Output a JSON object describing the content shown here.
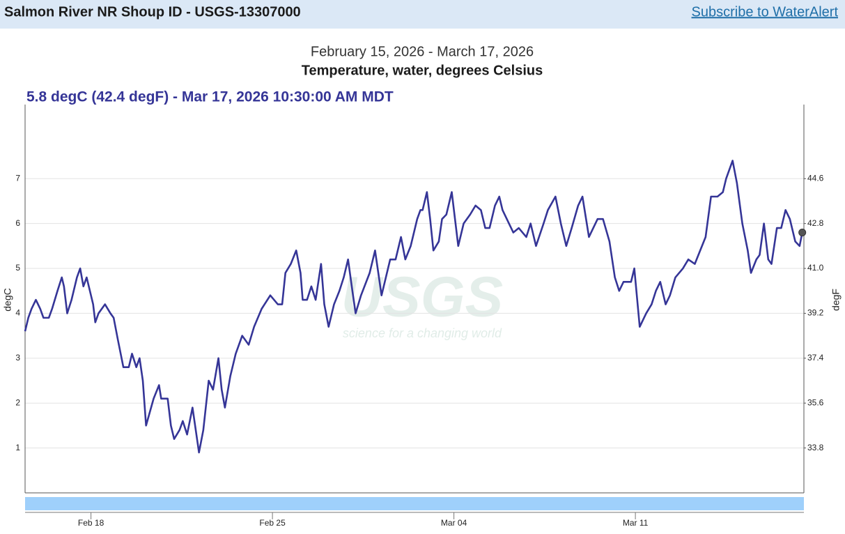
{
  "header": {
    "title": "Salmon River NR Shoup ID - USGS-13307000",
    "link": "Subscribe to WaterAlert"
  },
  "chart_data": {
    "type": "line",
    "subtitle": "February 15, 2026 - March 17, 2026",
    "title": "Temperature, water, degrees Celsius",
    "annotation": "5.8 degC (42.4 degF) - Mar 17, 2026 10:30:00 AM MDT",
    "y_label": "degC",
    "y2_label": "degF",
    "watermark": {
      "logo": "USGS",
      "tagline": "science for a changing world"
    },
    "color": "#353597",
    "grid": true,
    "x": [
      "2026-02-15T11:00",
      "2026-02-15T14:00",
      "2026-02-15T17:00",
      "2026-02-15T21:00",
      "2026-02-16T01:00",
      "2026-02-16T04:00",
      "2026-02-16T09:00",
      "2026-02-16T12:00",
      "2026-02-16T17:00",
      "2026-02-16T21:00",
      "2026-02-16T23:00",
      "2026-02-17T02:00",
      "2026-02-17T06:00",
      "2026-02-17T11:00",
      "2026-02-17T14:00",
      "2026-02-17T17:00",
      "2026-02-17T20:00",
      "2026-02-18T02:00",
      "2026-02-18T04:00",
      "2026-02-18T07:00",
      "2026-02-18T13:00",
      "2026-02-18T18:00",
      "2026-02-18T21:00",
      "2026-02-19T01:00",
      "2026-02-19T06:00",
      "2026-02-19T11:00",
      "2026-02-19T14:00",
      "2026-02-19T18:00",
      "2026-02-19T21:00",
      "2026-02-20T00:00",
      "2026-02-20T03:00",
      "2026-02-20T10:00",
      "2026-02-20T15:00",
      "2026-02-20T17:00",
      "2026-02-20T23:00",
      "2026-02-21T02:00",
      "2026-02-21T05:00",
      "2026-02-21T10:00",
      "2026-02-21T13:00",
      "2026-02-21T17:00",
      "2026-02-21T22:00",
      "2026-02-22T04:00",
      "2026-02-22T08:00",
      "2026-02-22T13:00",
      "2026-02-22T17:00",
      "2026-02-22T22:00",
      "2026-02-23T01:00",
      "2026-02-23T04:00",
      "2026-02-23T09:00",
      "2026-02-23T14:00",
      "2026-02-23T20:00",
      "2026-02-24T02:00",
      "2026-02-24T07:00",
      "2026-02-24T14:00",
      "2026-02-24T22:00",
      "2026-02-25T05:00",
      "2026-02-25T09:00",
      "2026-02-25T12:00",
      "2026-02-25T17:00",
      "2026-02-25T22:00",
      "2026-02-26T02:00",
      "2026-02-26T04:00",
      "2026-02-26T08:00",
      "2026-02-26T12:00",
      "2026-02-26T16:00",
      "2026-02-26T21:00",
      "2026-02-27T00:00",
      "2026-02-27T04:00",
      "2026-02-27T09:00",
      "2026-02-27T14:00",
      "2026-02-27T18:00",
      "2026-02-27T22:00",
      "2026-02-28T02:00",
      "2026-02-28T05:00",
      "2026-02-28T10:00",
      "2026-02-28T18:00",
      "2026-02-28T23:00",
      "2026-03-01T05:00",
      "2026-03-01T09:00",
      "2026-03-01T13:00",
      "2026-03-01T18:00",
      "2026-03-01T23:00",
      "2026-03-02T03:00",
      "2026-03-02T08:00",
      "2026-03-02T14:00",
      "2026-03-02T17:00",
      "2026-03-02T19:00",
      "2026-03-02T23:00",
      "2026-03-03T02:00",
      "2026-03-03T05:00",
      "2026-03-03T10:00",
      "2026-03-03T13:00",
      "2026-03-03T17:00",
      "2026-03-03T22:00",
      "2026-03-04T02:00",
      "2026-03-04T04:00",
      "2026-03-04T09:00",
      "2026-03-04T15:00",
      "2026-03-04T20:00",
      "2026-03-05T01:00",
      "2026-03-05T05:00",
      "2026-03-05T09:00",
      "2026-03-05T14:00",
      "2026-03-05T18:00",
      "2026-03-05T21:00",
      "2026-03-06T03:00",
      "2026-03-06T07:00",
      "2026-03-06T12:00",
      "2026-03-06T19:00",
      "2026-03-06T23:00",
      "2026-03-07T04:00",
      "2026-03-07T11:00",
      "2026-03-07T15:00",
      "2026-03-07T22:00",
      "2026-03-08T03:00",
      "2026-03-08T08:00",
      "2026-03-08T13:00",
      "2026-03-08T19:00",
      "2026-03-08T23:00",
      "2026-03-09T05:00",
      "2026-03-09T09:00",
      "2026-03-09T13:00",
      "2026-03-09T18:00",
      "2026-03-10T00:00",
      "2026-03-10T05:00",
      "2026-03-10T09:00",
      "2026-03-10T13:00",
      "2026-03-10T20:00",
      "2026-03-10T23:00",
      "2026-03-11T04:00",
      "2026-03-11T10:00",
      "2026-03-11T15:00",
      "2026-03-11T19:00",
      "2026-03-11T23:00",
      "2026-03-12T04:00",
      "2026-03-12T08:00",
      "2026-03-12T13:00",
      "2026-03-12T20:00",
      "2026-03-13T01:00",
      "2026-03-13T07:00",
      "2026-03-13T12:00",
      "2026-03-13T17:00",
      "2026-03-13T22:00",
      "2026-03-14T04:00",
      "2026-03-14T09:00",
      "2026-03-14T12:00",
      "2026-03-14T15:00",
      "2026-03-14T18:00",
      "2026-03-14T22:00",
      "2026-03-15T03:00",
      "2026-03-15T08:00",
      "2026-03-15T11:00",
      "2026-03-15T16:00",
      "2026-03-15T19:00",
      "2026-03-15T23:00",
      "2026-03-16T03:00",
      "2026-03-16T06:00",
      "2026-03-16T11:00",
      "2026-03-16T15:00",
      "2026-03-16T19:00",
      "2026-03-16T23:00",
      "2026-03-17T04:00",
      "2026-03-17T08:00",
      "2026-03-17T10:30"
    ],
    "values": [
      3.6,
      3.9,
      4.1,
      4.3,
      4.1,
      3.9,
      3.9,
      4.1,
      4.5,
      4.8,
      4.6,
      4.0,
      4.3,
      4.8,
      5.0,
      4.6,
      4.8,
      4.2,
      3.8,
      4.0,
      4.2,
      4.0,
      3.9,
      3.4,
      2.8,
      2.8,
      3.1,
      2.8,
      3.0,
      2.5,
      1.5,
      2.1,
      2.4,
      2.1,
      2.1,
      1.5,
      1.2,
      1.4,
      1.6,
      1.3,
      1.9,
      0.9,
      1.4,
      2.5,
      2.3,
      3.0,
      2.3,
      1.9,
      2.6,
      3.1,
      3.5,
      3.3,
      3.7,
      4.1,
      4.4,
      4.2,
      4.2,
      4.9,
      5.1,
      5.4,
      4.9,
      4.3,
      4.3,
      4.6,
      4.3,
      5.1,
      4.2,
      3.7,
      4.2,
      4.5,
      4.8,
      5.2,
      4.5,
      4.0,
      4.4,
      4.9,
      5.4,
      4.4,
      4.8,
      5.2,
      5.2,
      5.7,
      5.2,
      5.5,
      6.1,
      6.3,
      6.3,
      6.7,
      6.1,
      5.4,
      5.6,
      6.1,
      6.2,
      6.7,
      5.9,
      5.5,
      6.0,
      6.2,
      6.4,
      6.3,
      5.9,
      5.9,
      6.4,
      6.6,
      6.3,
      6.0,
      5.8,
      5.9,
      5.7,
      6.0,
      5.5,
      6.0,
      6.3,
      6.6,
      6.0,
      5.5,
      5.9,
      6.4,
      6.6,
      5.7,
      5.9,
      6.1,
      6.1,
      5.6,
      4.8,
      4.5,
      4.7,
      4.7,
      5.0,
      3.7,
      4.0,
      4.2,
      4.5,
      4.7,
      4.2,
      4.4,
      4.8,
      5.0,
      5.2,
      5.1,
      5.4,
      5.7,
      6.6,
      6.6,
      6.7,
      7.0,
      7.2,
      7.4,
      6.9,
      6.0,
      5.4,
      4.9,
      5.2,
      5.3,
      6.0,
      5.2,
      5.1,
      5.9,
      5.9,
      6.3,
      6.1,
      5.6,
      5.5,
      5.8
    ],
    "xlim": [
      "2026-02-15T11:00",
      "2026-03-17T12:00"
    ],
    "xticks": [
      {
        "value": "2026-02-18T00:00",
        "label": "Feb 18"
      },
      {
        "value": "2026-02-25T00:00",
        "label": "Feb 25"
      },
      {
        "value": "2026-03-04T00:00",
        "label": "Mar 04"
      },
      {
        "value": "2026-03-11T00:00",
        "label": "Mar 11"
      }
    ],
    "ylim": [
      0,
      8.65
    ],
    "yticks": [
      1,
      2,
      3,
      4,
      5,
      6,
      7
    ],
    "y2lim": [
      32,
      47.57
    ],
    "y2ticks": [
      33.8,
      35.6,
      37.4,
      39.2,
      {
        "value": 41,
        "label": "41.0"
      },
      42.8,
      44.6
    ]
  }
}
